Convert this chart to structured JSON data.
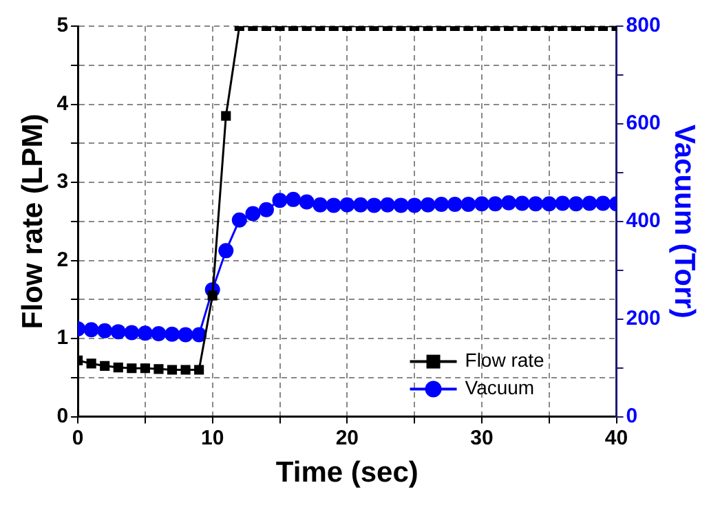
{
  "chart_data": {
    "type": "line",
    "xlabel": "Time (sec)",
    "ylabel": "Flow rate (LPM)",
    "y2label": "Vacuum (Torr)",
    "x": [
      0,
      1,
      2,
      3,
      4,
      5,
      6,
      7,
      8,
      9,
      10,
      11,
      12,
      13,
      14,
      15,
      16,
      17,
      18,
      19,
      20,
      21,
      22,
      23,
      24,
      25,
      26,
      27,
      28,
      29,
      30,
      31,
      32,
      33,
      34,
      35,
      36,
      37,
      38,
      39,
      40
    ],
    "series": [
      {
        "name": "Flow rate",
        "color": "#000000",
        "marker": "square",
        "values": [
          0.72,
          0.68,
          0.65,
          0.63,
          0.62,
          0.62,
          0.61,
          0.6,
          0.6,
          0.6,
          1.55,
          3.85,
          5,
          5,
          5,
          5,
          5,
          5,
          5,
          5,
          5,
          5,
          5,
          5,
          5,
          5,
          5,
          5,
          5,
          5,
          5,
          5,
          5,
          5,
          5,
          5,
          5,
          5,
          5,
          5,
          5
        ]
      },
      {
        "name": "Vacuum",
        "color": "#0000ff",
        "marker": "circle",
        "axis": "y2",
        "values": [
          180,
          178,
          176,
          174,
          172,
          171,
          170,
          169,
          168,
          168,
          260,
          340,
          403,
          416,
          424,
          443,
          445,
          440,
          434,
          433,
          434,
          434,
          433,
          434,
          433,
          433,
          434,
          435,
          435,
          435,
          436,
          436,
          438,
          437,
          436,
          436,
          437,
          436,
          437,
          437,
          436
        ]
      }
    ],
    "xlim": [
      0,
      40
    ],
    "xticks": [
      0,
      {
        "value": 5,
        "label": null
      },
      10,
      {
        "value": 15,
        "label": null
      },
      20,
      {
        "value": 25,
        "label": null
      },
      30,
      {
        "value": 35,
        "label": null
      },
      40
    ],
    "ylim": [
      0,
      5
    ],
    "yticks": [
      0,
      {
        "value": 0.5,
        "label": null
      },
      1,
      {
        "value": 1.5,
        "label": null
      },
      2,
      {
        "value": 2.5,
        "label": null
      },
      3,
      {
        "value": 3.5,
        "label": null
      },
      4,
      {
        "value": 4.5,
        "label": null
      },
      5
    ],
    "y2lim": [
      0,
      800
    ],
    "y2ticks": [
      0,
      {
        "value": 100,
        "label": null
      },
      200,
      {
        "value": 300,
        "label": null
      },
      400,
      {
        "value": 500,
        "label": null
      },
      600,
      {
        "value": 700,
        "label": null
      },
      800
    ],
    "grid": true,
    "legend": "bottom right",
    "line_style": "solid"
  }
}
